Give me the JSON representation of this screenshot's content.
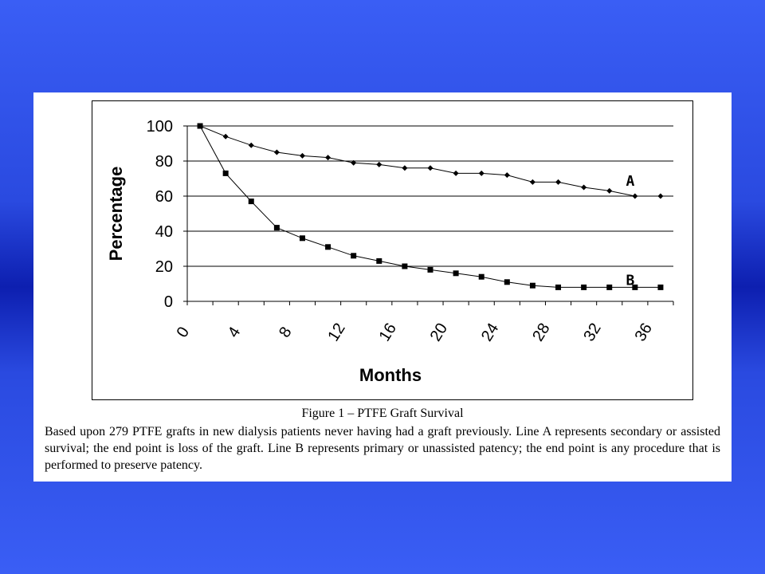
{
  "chart_data": {
    "type": "line",
    "xlabel": "Months",
    "ylabel": "Percentage",
    "ylim": [
      0,
      100
    ],
    "yticks": [
      0,
      20,
      40,
      60,
      80,
      100
    ],
    "xticks": [
      "0",
      "4",
      "8",
      "12",
      "16",
      "20",
      "24",
      "28",
      "32",
      "36"
    ],
    "grid": "horizontal",
    "x": [
      1,
      3,
      5,
      7,
      9,
      11,
      13,
      15,
      17,
      19,
      21,
      23,
      25,
      27,
      29,
      31,
      33,
      35,
      37
    ],
    "series": [
      {
        "name": "A",
        "marker": "diamond",
        "values": [
          100,
          94,
          89,
          85,
          83,
          82,
          79,
          78,
          76,
          76,
          73,
          73,
          72,
          68,
          68,
          65,
          63,
          60,
          60
        ]
      },
      {
        "name": "B",
        "marker": "square",
        "values": [
          100,
          73,
          57,
          42,
          36,
          31,
          26,
          23,
          20,
          18,
          16,
          14,
          11,
          9,
          8,
          8,
          8,
          8,
          8
        ]
      }
    ]
  },
  "caption": "Figure 1 – PTFE Graft Survival",
  "description": "Based upon 279 PTFE grafts in new dialysis patients never having had a graft previously. Line A represents secondary or assisted survival; the end point is loss of the graft. Line B represents primary or unassisted patency; the end point is any procedure that is performed to preserve patency."
}
